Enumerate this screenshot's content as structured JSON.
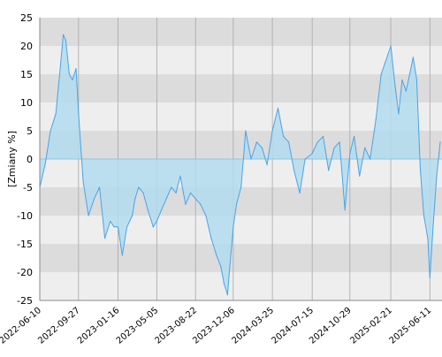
{
  "chart_data": {
    "type": "area",
    "ylabel": "[Zmiany %]",
    "ylim": [
      -25,
      25
    ],
    "xlim": [
      "2022-06-10",
      "2025-07-15"
    ],
    "y_ticks": [
      25,
      20,
      15,
      10,
      5,
      0,
      -5,
      -10,
      -15,
      -20,
      -25
    ],
    "x_ticks": [
      "2022-06-10",
      "2022-09-27",
      "2023-01-16",
      "2023-05-05",
      "2023-08-22",
      "2023-12-06",
      "2024-03-25",
      "2024-07-15",
      "2024-10-29",
      "2025-02-21",
      "2025-06-11"
    ],
    "grid": true,
    "colors": {
      "line": "#4aa3e8",
      "fill": "#b3dcef",
      "band_dark": "#dcdcdc",
      "band_light": "#eeeeee",
      "gridline": "#a8a8a8",
      "zero_line": "#8fc9e3"
    },
    "series": [
      {
        "x": [
          "2022-06-10",
          "2022-06-25",
          "2022-07-10",
          "2022-07-25",
          "2022-08-05",
          "2022-08-15",
          "2022-08-22",
          "2022-09-01",
          "2022-09-10",
          "2022-09-20",
          "2022-09-27",
          "2022-10-10",
          "2022-10-25",
          "2022-11-10",
          "2022-11-25",
          "2022-12-10",
          "2022-12-25",
          "2023-01-05",
          "2023-01-16",
          "2023-01-28",
          "2023-02-10",
          "2023-02-25",
          "2023-03-05",
          "2023-03-15",
          "2023-03-28",
          "2023-04-10",
          "2023-04-25",
          "2023-05-05",
          "2023-05-18",
          "2023-06-01",
          "2023-06-15",
          "2023-06-28",
          "2023-07-10",
          "2023-07-25",
          "2023-08-08",
          "2023-08-22",
          "2023-09-05",
          "2023-09-20",
          "2023-10-05",
          "2023-10-20",
          "2023-11-01",
          "2023-11-10",
          "2023-11-20",
          "2023-11-25",
          "2023-12-06",
          "2023-12-15",
          "2023-12-28",
          "2024-01-10",
          "2024-01-25",
          "2024-02-10",
          "2024-02-25",
          "2024-03-10",
          "2024-03-25",
          "2024-04-10",
          "2024-04-25",
          "2024-05-10",
          "2024-05-25",
          "2024-06-10",
          "2024-06-25",
          "2024-07-15",
          "2024-07-30",
          "2024-08-15",
          "2024-08-30",
          "2024-09-15",
          "2024-09-30",
          "2024-10-15",
          "2024-10-29",
          "2024-11-10",
          "2024-11-25",
          "2024-12-10",
          "2024-12-25",
          "2025-01-10",
          "2025-01-25",
          "2025-02-05",
          "2025-02-21",
          "2025-03-05",
          "2025-03-15",
          "2025-03-25",
          "2025-04-05",
          "2025-04-15",
          "2025-04-25",
          "2025-05-05",
          "2025-05-15",
          "2025-05-25",
          "2025-06-05",
          "2025-06-11",
          "2025-06-20",
          "2025-06-30",
          "2025-07-10"
        ],
        "y": [
          -5,
          -1,
          5,
          8,
          15,
          22,
          21,
          15,
          14,
          16,
          8,
          -4,
          -10,
          -7,
          -5,
          -14,
          -11,
          -12,
          -12,
          -17,
          -12,
          -10,
          -7,
          -5,
          -6,
          -9,
          -12,
          -11,
          -9,
          -7,
          -5,
          -6,
          -3,
          -8,
          -6,
          -7,
          -8,
          -10,
          -14,
          -17,
          -19,
          -22,
          -24,
          -20,
          -12,
          -8,
          -5,
          5,
          0,
          3,
          2,
          -1,
          5,
          9,
          4,
          3,
          -2,
          -6,
          0,
          1,
          3,
          4,
          -2,
          2,
          3,
          -9,
          1,
          4,
          -3,
          2,
          0,
          7,
          15,
          17,
          20,
          13,
          8,
          14,
          12,
          15,
          18,
          14,
          -2,
          -10,
          -14,
          -21,
          -12,
          -3,
          3
        ]
      }
    ]
  }
}
